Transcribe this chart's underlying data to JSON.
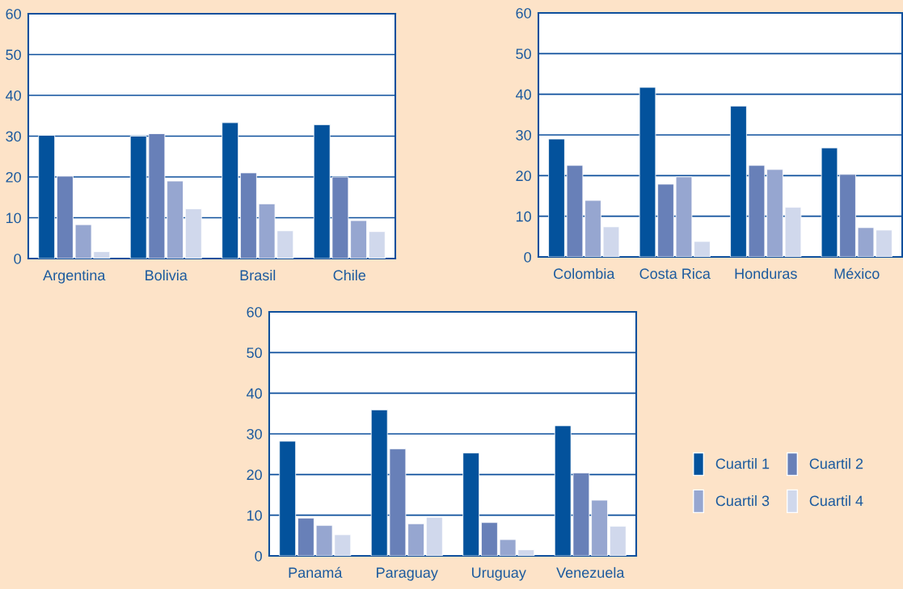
{
  "chart_data": [
    {
      "type": "bar",
      "categories": [
        "Argentina",
        "Bolivia",
        "Brasil",
        "Chile"
      ],
      "ylim": [
        0,
        60
      ],
      "yticks": [
        0,
        10,
        20,
        30,
        40,
        50,
        60
      ],
      "grid": "y",
      "series": [
        {
          "color": "#03529c",
          "values": [
            30.2,
            30,
            33.3,
            32.8
          ]
        },
        {
          "color": "#6880b8",
          "values": [
            20.2,
            30.6,
            21,
            20
          ]
        },
        {
          "color": "#96a6d0",
          "values": [
            8.3,
            19,
            13.4,
            9.3
          ]
        },
        {
          "color": "#d0d8ec",
          "values": [
            1.7,
            12.2,
            6.8,
            6.6
          ]
        }
      ]
    },
    {
      "type": "bar",
      "categories": [
        "Colombia",
        "Costa Rica",
        "Honduras",
        "México"
      ],
      "ylim": [
        0,
        60
      ],
      "yticks": [
        0,
        10,
        20,
        30,
        40,
        50,
        60
      ],
      "grid": "y",
      "series": [
        {
          "color": "#03529c",
          "values": [
            29,
            41.7,
            37.1,
            26.8
          ]
        },
        {
          "color": "#6880b8",
          "values": [
            22.5,
            17.9,
            22.5,
            20.3
          ]
        },
        {
          "color": "#96a6d0",
          "values": [
            13.9,
            19.7,
            21.5,
            7.2
          ]
        },
        {
          "color": "#d0d8ec",
          "values": [
            7.4,
            3.8,
            12.2,
            6.6
          ]
        }
      ]
    },
    {
      "type": "bar",
      "categories": [
        "Panamá",
        "Paraguay",
        "Uruguay",
        "Venezuela"
      ],
      "ylim": [
        0,
        60
      ],
      "yticks": [
        0,
        10,
        20,
        30,
        40,
        50,
        60
      ],
      "grid": "y",
      "legend": "right",
      "series": [
        {
          "name": "Cuartil 1",
          "color": "#03529c",
          "values": [
            28.2,
            35.9,
            25.3,
            32
          ]
        },
        {
          "name": "Cuartil 2",
          "color": "#6880b8",
          "values": [
            9.3,
            26.3,
            8.2,
            20.4
          ]
        },
        {
          "name": "Cuartil 3",
          "color": "#96a6d0",
          "values": [
            7.5,
            7.9,
            4.0,
            13.7
          ]
        },
        {
          "name": "Cuartil 4",
          "color": "#d0d8ec",
          "values": [
            5.2,
            9.5,
            1.5,
            7.3
          ]
        }
      ]
    }
  ]
}
